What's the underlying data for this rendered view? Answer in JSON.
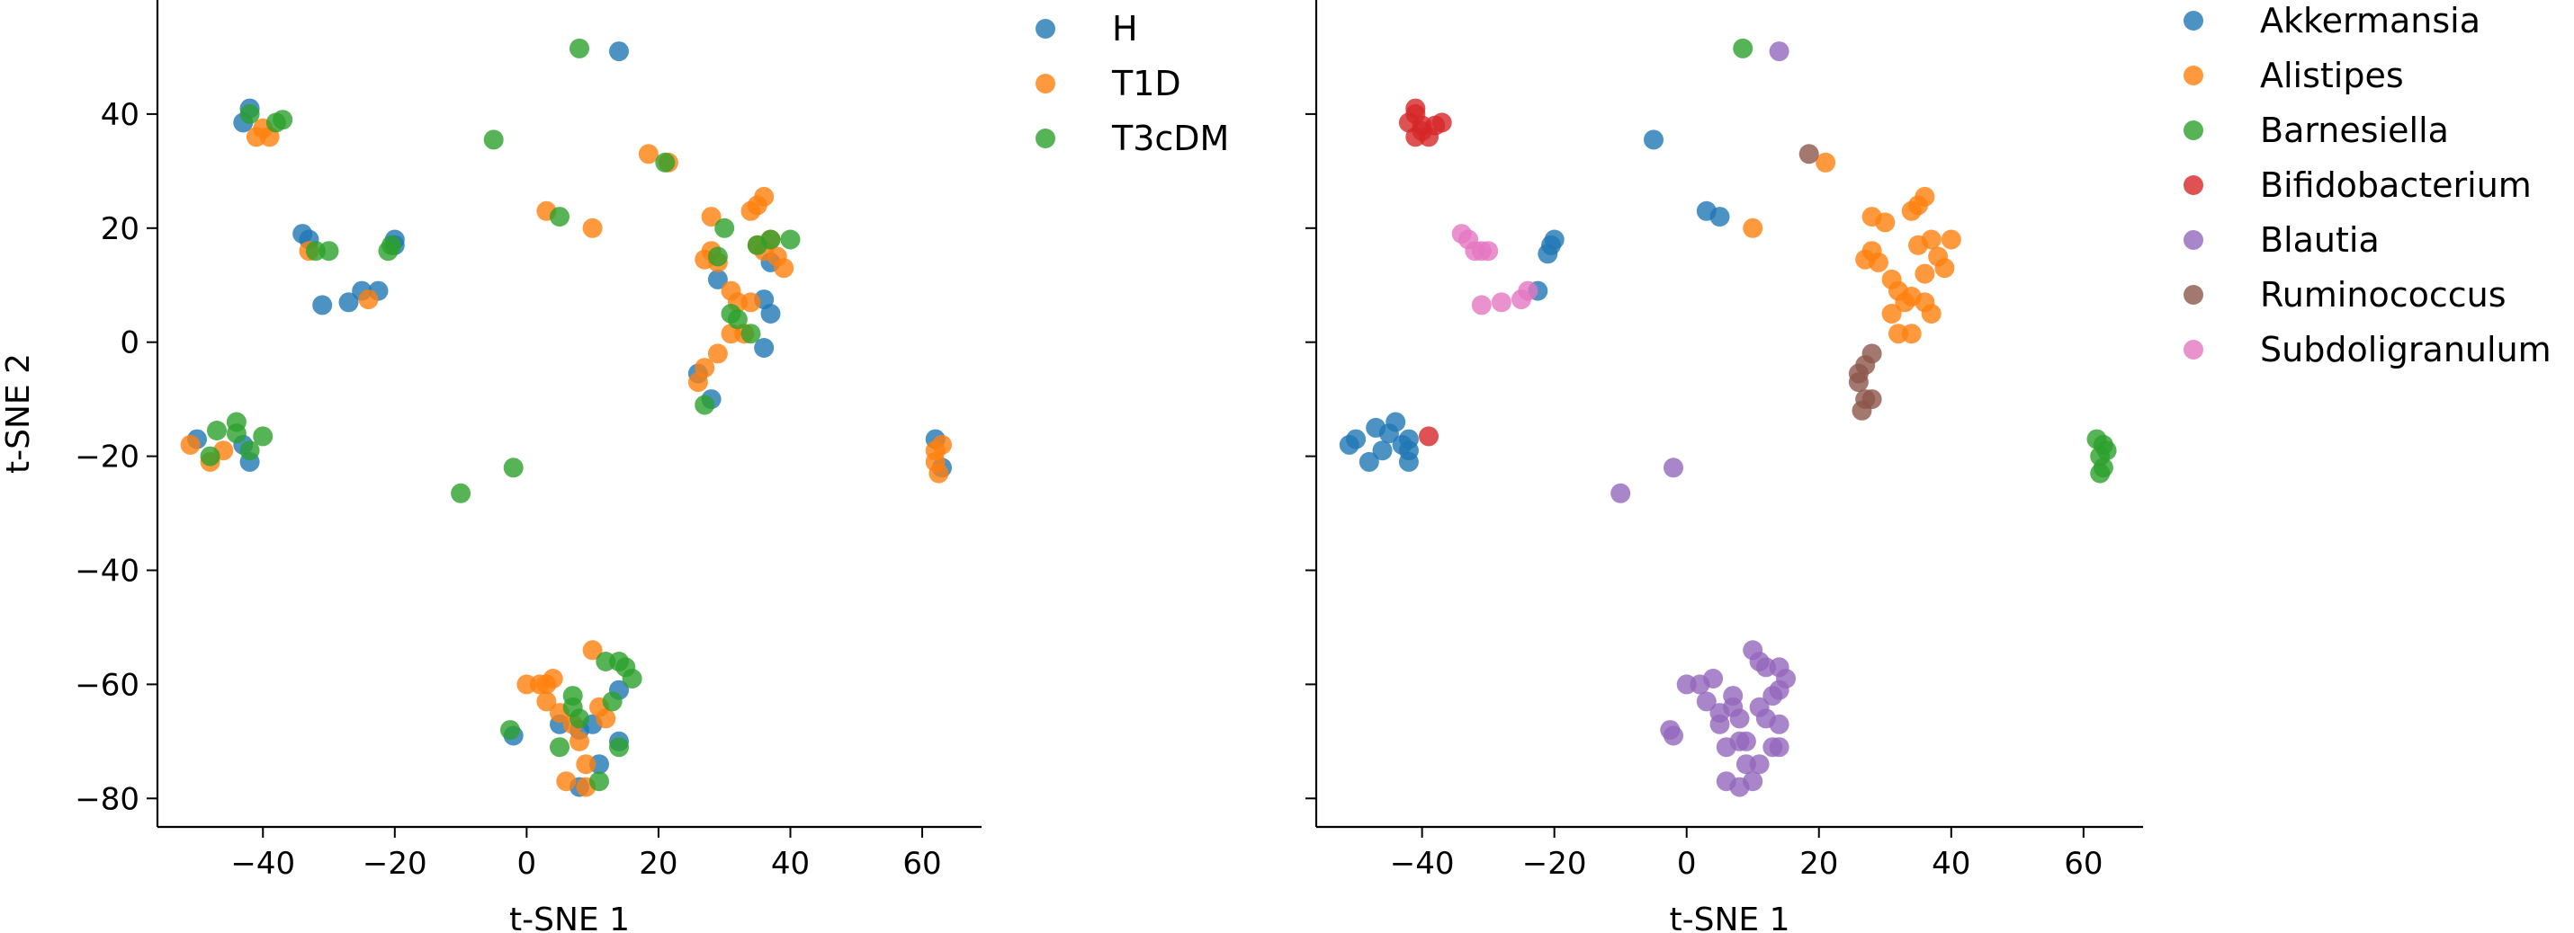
{
  "chart_data": [
    {
      "type": "scatter",
      "title": "",
      "xlabel": "t-SNE 1",
      "ylabel": "t-SNE 2",
      "xlim": [
        -56,
        69
      ],
      "ylim": [
        -85,
        60
      ],
      "xticks": [
        -40,
        -20,
        0,
        20,
        40,
        60
      ],
      "yticks": [
        -80,
        -60,
        -40,
        -20,
        0,
        20,
        40
      ],
      "legend_placement": "outside right",
      "series": [
        {
          "name": "H",
          "color": "#1f77b4",
          "points": [
            [
              -42,
              41
            ],
            [
              -43,
              38.5
            ],
            [
              -34,
              19
            ],
            [
              -33,
              18
            ],
            [
              -31,
              6.5
            ],
            [
              -27,
              7
            ],
            [
              -25,
              9
            ],
            [
              -22.5,
              9
            ],
            [
              -20,
              18
            ],
            [
              -20,
              17
            ],
            [
              -42,
              -21
            ],
            [
              -43,
              -18
            ],
            [
              -50,
              -17
            ],
            [
              14,
              51
            ],
            [
              29,
              11
            ],
            [
              36,
              7.5
            ],
            [
              37,
              5
            ],
            [
              36,
              -1
            ],
            [
              26,
              -5.5
            ],
            [
              28,
              -10
            ],
            [
              37,
              14
            ],
            [
              62,
              -17
            ],
            [
              63,
              -22
            ],
            [
              5,
              -67
            ],
            [
              8,
              -68
            ],
            [
              10,
              -67
            ],
            [
              11,
              -74
            ],
            [
              14,
              -61
            ],
            [
              14,
              -70
            ],
            [
              8,
              -78
            ],
            [
              -2,
              -69
            ]
          ]
        },
        {
          "name": "T1D",
          "color": "#ff7f0e",
          "points": [
            [
              -41,
              36
            ],
            [
              -40,
              37.5
            ],
            [
              -39,
              36
            ],
            [
              -33,
              16
            ],
            [
              -24,
              7.5
            ],
            [
              -51,
              -18
            ],
            [
              -48,
              -21
            ],
            [
              -46,
              -19
            ],
            [
              3,
              23
            ],
            [
              10,
              20
            ],
            [
              18.5,
              33
            ],
            [
              21.5,
              31.5
            ],
            [
              28,
              22
            ],
            [
              28,
              16
            ],
            [
              27,
              14.5
            ],
            [
              29,
              14
            ],
            [
              31,
              9
            ],
            [
              32,
              7
            ],
            [
              34,
              7
            ],
            [
              35,
              17
            ],
            [
              36,
              16
            ],
            [
              34,
              23
            ],
            [
              35,
              24
            ],
            [
              36,
              25.5
            ],
            [
              37,
              18
            ],
            [
              38,
              15
            ],
            [
              39,
              13
            ],
            [
              27,
              -4.5
            ],
            [
              26,
              -7
            ],
            [
              29,
              -2
            ],
            [
              31,
              1.5
            ],
            [
              33,
              1.5
            ],
            [
              62,
              -19
            ],
            [
              63,
              -18
            ],
            [
              62,
              -21
            ],
            [
              62.5,
              -23
            ],
            [
              0,
              -60
            ],
            [
              2,
              -60
            ],
            [
              3,
              -60
            ],
            [
              4,
              -59
            ],
            [
              3,
              -63
            ],
            [
              5,
              -65
            ],
            [
              7,
              -67
            ],
            [
              10,
              -54
            ],
            [
              11,
              -64
            ],
            [
              12,
              -66
            ],
            [
              8,
              -70
            ],
            [
              6,
              -77
            ],
            [
              9,
              -78
            ],
            [
              9,
              -74
            ]
          ]
        },
        {
          "name": "T3cDM",
          "color": "#2ca02c",
          "points": [
            [
              -42,
              40
            ],
            [
              -38,
              38.5
            ],
            [
              -37,
              39
            ],
            [
              -32,
              16
            ],
            [
              -30,
              16
            ],
            [
              -21,
              16
            ],
            [
              -20.5,
              17
            ],
            [
              -48,
              -20
            ],
            [
              -47,
              -15.5
            ],
            [
              -44,
              -14
            ],
            [
              -44,
              -16
            ],
            [
              -42,
              -19
            ],
            [
              -40,
              -16.5
            ],
            [
              8,
              51.5
            ],
            [
              -5,
              35.5
            ],
            [
              5,
              22
            ],
            [
              21,
              31.5
            ],
            [
              29,
              15
            ],
            [
              30,
              20
            ],
            [
              31,
              5
            ],
            [
              32,
              4
            ],
            [
              34,
              1.5
            ],
            [
              35,
              17
            ],
            [
              37,
              18
            ],
            [
              40,
              18
            ],
            [
              27,
              -11
            ],
            [
              -10,
              -26.5
            ],
            [
              -2,
              -22
            ],
            [
              -2.5,
              -68
            ],
            [
              5,
              -71
            ],
            [
              7,
              -62
            ],
            [
              7,
              -64
            ],
            [
              8,
              -66
            ],
            [
              11,
              -77
            ],
            [
              12,
              -56
            ],
            [
              13,
              -63
            ],
            [
              14,
              -71
            ],
            [
              15,
              -57
            ],
            [
              16,
              -59
            ],
            [
              14,
              -56
            ]
          ]
        }
      ]
    },
    {
      "type": "scatter",
      "title": "",
      "xlabel": "t-SNE 1",
      "ylabel": "",
      "xlim": [
        -56,
        69
      ],
      "ylim": [
        -85,
        60
      ],
      "xticks": [
        -40,
        -20,
        0,
        20,
        40,
        60
      ],
      "yticks": [
        -80,
        -60,
        -40,
        -20,
        0,
        20,
        40
      ],
      "legend_placement": "outside right",
      "series": [
        {
          "name": "Akkermansia",
          "color": "#1f77b4",
          "points": [
            [
              -5,
              35.5
            ],
            [
              3,
              23
            ],
            [
              5,
              22
            ],
            [
              -20,
              18
            ],
            [
              -20.5,
              17
            ],
            [
              -21,
              15.5
            ],
            [
              -22.5,
              9
            ],
            [
              -51,
              -18
            ],
            [
              -50,
              -17
            ],
            [
              -47,
              -15
            ],
            [
              -44,
              -14
            ],
            [
              -45,
              -16
            ],
            [
              -42,
              -17
            ],
            [
              -42,
              -19
            ],
            [
              -42,
              -21
            ],
            [
              -48,
              -21
            ],
            [
              -46,
              -19
            ],
            [
              -43,
              -18
            ]
          ]
        },
        {
          "name": "Alistipes",
          "color": "#ff7f0e",
          "points": [
            [
              21,
              31.5
            ],
            [
              10,
              20
            ],
            [
              28,
              22
            ],
            [
              30,
              21
            ],
            [
              34,
              23
            ],
            [
              35,
              24
            ],
            [
              36,
              25.5
            ],
            [
              37,
              18
            ],
            [
              38,
              15
            ],
            [
              39,
              13
            ],
            [
              40,
              18
            ],
            [
              27,
              14.5
            ],
            [
              28,
              16
            ],
            [
              29,
              14
            ],
            [
              31,
              11
            ],
            [
              32,
              9
            ],
            [
              33,
              7
            ],
            [
              34,
              8
            ],
            [
              36,
              7
            ],
            [
              37,
              5
            ],
            [
              31,
              5
            ],
            [
              32,
              1.5
            ],
            [
              34,
              1.5
            ],
            [
              36,
              12
            ],
            [
              35,
              17
            ]
          ]
        },
        {
          "name": "Barnesiella",
          "color": "#2ca02c",
          "points": [
            [
              8.5,
              51.5
            ],
            [
              62,
              -17
            ],
            [
              63,
              -18
            ],
            [
              62.5,
              -20
            ],
            [
              63,
              -22
            ],
            [
              62.5,
              -23
            ],
            [
              63.5,
              -19
            ]
          ]
        },
        {
          "name": "Bifidobacterium",
          "color": "#d62728",
          "points": [
            [
              -41,
              41
            ],
            [
              -41,
              40
            ],
            [
              -42,
              38.5
            ],
            [
              -40,
              38
            ],
            [
              -38,
              38
            ],
            [
              -37,
              38.5
            ],
            [
              -41,
              36
            ],
            [
              -39,
              36
            ],
            [
              -40,
              37
            ],
            [
              -39,
              -16.5
            ]
          ]
        },
        {
          "name": "Blautia",
          "color": "#9467bd",
          "points": [
            [
              14,
              51
            ],
            [
              -10,
              -26.5
            ],
            [
              -2,
              -22
            ],
            [
              -2.5,
              -68
            ],
            [
              -2,
              -69
            ],
            [
              0,
              -60
            ],
            [
              2,
              -60
            ],
            [
              4,
              -59
            ],
            [
              3,
              -63
            ],
            [
              5,
              -65
            ],
            [
              5,
              -67
            ],
            [
              7,
              -62
            ],
            [
              7,
              -64
            ],
            [
              8,
              -66
            ],
            [
              8,
              -70
            ],
            [
              9,
              -74
            ],
            [
              10,
              -54
            ],
            [
              11,
              -56
            ],
            [
              12,
              -57
            ],
            [
              14,
              -57
            ],
            [
              15,
              -59
            ],
            [
              13,
              -62
            ],
            [
              11,
              -64
            ],
            [
              12,
              -66
            ],
            [
              14,
              -61
            ],
            [
              14,
              -67
            ],
            [
              13,
              -71
            ],
            [
              14,
              -71
            ],
            [
              11,
              -74
            ],
            [
              10,
              -77
            ],
            [
              8,
              -78
            ],
            [
              6,
              -77
            ],
            [
              6,
              -71
            ],
            [
              9,
              -70
            ]
          ]
        },
        {
          "name": "Ruminococcus",
          "color": "#8c564b",
          "points": [
            [
              18.5,
              33
            ],
            [
              26,
              -5.5
            ],
            [
              27,
              -4
            ],
            [
              26,
              -7
            ],
            [
              27,
              -10
            ],
            [
              28,
              -10
            ],
            [
              26.5,
              -12
            ],
            [
              28,
              -2
            ]
          ]
        },
        {
          "name": "Subdoligranulum",
          "color": "#e377c2",
          "points": [
            [
              -34,
              19
            ],
            [
              -33,
              18
            ],
            [
              -32,
              16
            ],
            [
              -31,
              16
            ],
            [
              -30,
              16
            ],
            [
              -24,
              9
            ],
            [
              -25,
              7.5
            ],
            [
              -28,
              7
            ],
            [
              -31,
              6.5
            ]
          ]
        }
      ]
    }
  ]
}
